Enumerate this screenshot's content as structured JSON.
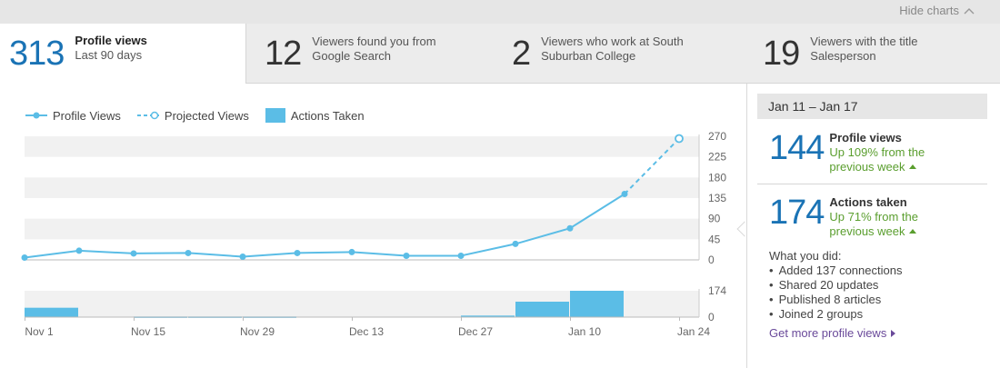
{
  "header": {
    "hide_charts_label": "Hide charts"
  },
  "tabs": [
    {
      "number": "313",
      "line1": "Profile views",
      "line2": "Last 90 days"
    },
    {
      "number": "12",
      "line1": "Viewers found you from",
      "line2": "Google Search"
    },
    {
      "number": "2",
      "line1": "Viewers who work at South",
      "line2": "Suburban College"
    },
    {
      "number": "19",
      "line1": "Viewers with the title",
      "line2": "Salesperson"
    }
  ],
  "legend": {
    "profile_views": "Profile Views",
    "projected_views": "Projected Views",
    "actions_taken": "Actions Taken"
  },
  "sidebar": {
    "date_range": "Jan 11 – Jan 17",
    "profile_views": {
      "number": "144",
      "label": "Profile views",
      "change_line1": "Up 109% from the",
      "change_line2": "previous week"
    },
    "actions_taken": {
      "number": "174",
      "label": "Actions taken",
      "change_line1": "Up 71% from the",
      "change_line2": "previous week"
    },
    "what_you_did_title": "What you did:",
    "what_you_did": [
      "Added 137 connections",
      "Shared 20 updates",
      "Published 8 articles",
      "Joined 2 groups"
    ],
    "more_link": "Get more profile views"
  },
  "colors": {
    "accent": "#1a73b5",
    "series": "#5bbde6",
    "bars": "#5bbde6",
    "positive": "#5a9e2e",
    "band": "#f1f1f1"
  },
  "chart_data": {
    "type": "line",
    "x": [
      "Nov 1",
      "Nov 8",
      "Nov 15",
      "Nov 22",
      "Nov 29",
      "Dec 6",
      "Dec 13",
      "Dec 20",
      "Dec 27",
      "Jan 3",
      "Jan 10",
      "Jan 17",
      "Jan 24"
    ],
    "xticks": [
      "Nov 1",
      "Nov 15",
      "Nov 29",
      "Dec 13",
      "Dec 27",
      "Jan 10",
      "Jan 24"
    ],
    "yticks": [
      0,
      45,
      90,
      135,
      180,
      225,
      270
    ],
    "ylim": [
      0,
      270
    ],
    "series": [
      {
        "name": "Profile Views",
        "style": "solid",
        "values": [
          5,
          20,
          14,
          15,
          7,
          15,
          17,
          9,
          9,
          35,
          69,
          144,
          null
        ]
      },
      {
        "name": "Projected Views",
        "style": "dashed",
        "values": [
          null,
          null,
          null,
          null,
          null,
          null,
          null,
          null,
          null,
          null,
          null,
          144,
          265
        ]
      }
    ],
    "actions": {
      "name": "Actions Taken",
      "type": "bar",
      "ylim": [
        0,
        174
      ],
      "yticks": [
        0,
        174
      ],
      "weeks": [
        "Nov 1",
        "Nov 8",
        "Nov 15",
        "Nov 22",
        "Nov 29",
        "Dec 6",
        "Dec 13",
        "Dec 20",
        "Dec 27",
        "Jan 3",
        "Jan 10"
      ],
      "values": [
        62,
        0,
        4,
        4,
        4,
        0,
        0,
        0,
        10,
        102,
        174
      ]
    }
  }
}
